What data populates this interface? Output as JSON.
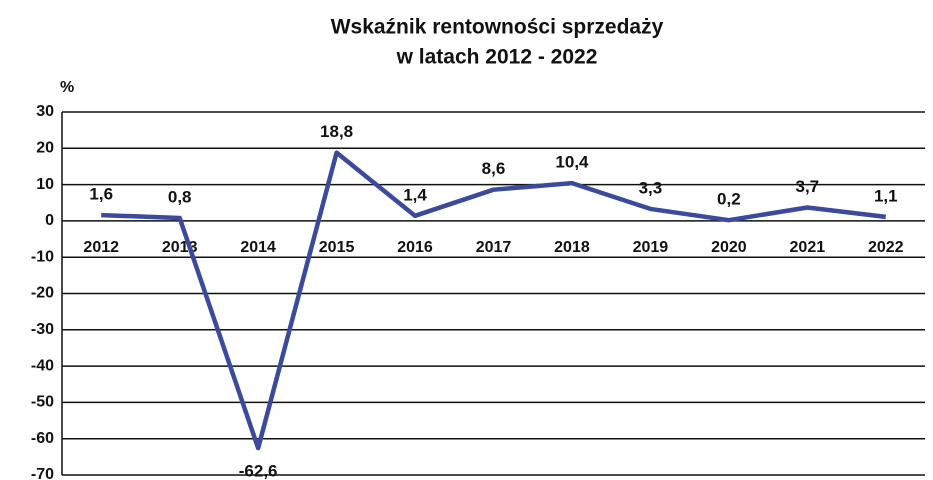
{
  "chart_data": {
    "type": "line",
    "title": "Wskaźnik rentowności sprzedaży",
    "subtitle": "w latach 2012 - 2022",
    "y_axis_label": "%",
    "categories": [
      "2012",
      "2013",
      "2014",
      "2015",
      "2016",
      "2017",
      "2018",
      "2019",
      "2020",
      "2021",
      "2022"
    ],
    "series": [
      {
        "name": "Wskaźnik rentowności sprzedaży",
        "color": "#3b4a9c",
        "values": [
          1.6,
          0.8,
          -62.6,
          18.8,
          1.4,
          8.6,
          10.4,
          3.3,
          0.2,
          3.7,
          1.1
        ],
        "value_labels": [
          "1,6",
          "0,8",
          "-62,6",
          "18,8",
          "1,4",
          "8,6",
          "10,4",
          "3,3",
          "0,2",
          "3,7",
          "1,1"
        ]
      }
    ],
    "ylim": [
      -70,
      30
    ],
    "yticks": [
      30,
      20,
      10,
      0,
      -10,
      -20,
      -30,
      -40,
      -50,
      -60,
      -70
    ],
    "grid": true
  }
}
